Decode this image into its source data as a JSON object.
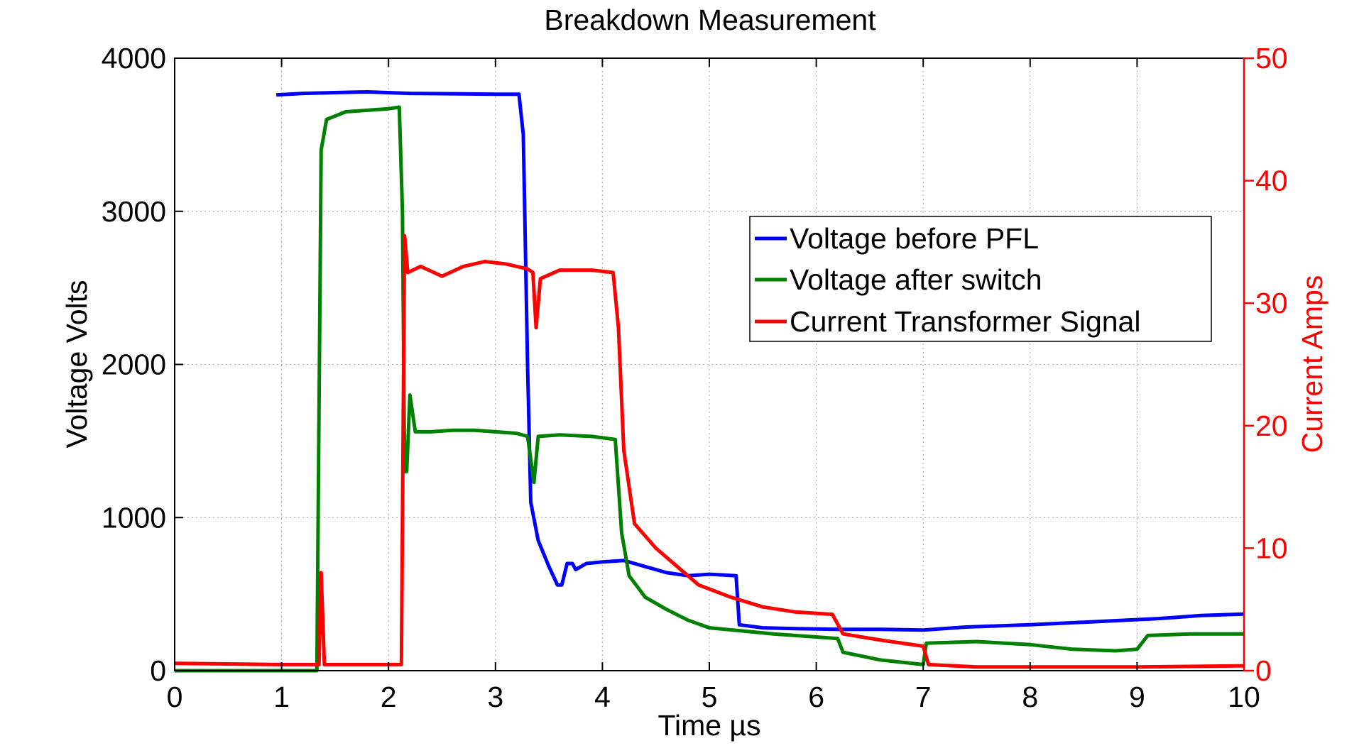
{
  "chart_data": {
    "type": "line",
    "title": "Breakdown Measurement",
    "xlabel": "Time µs",
    "ylabel_left": "Voltage Volts",
    "ylabel_right": "Current Amps",
    "xlim": [
      0,
      10
    ],
    "ylim_left": [
      0,
      4000
    ],
    "ylim_right": [
      0,
      50
    ],
    "x_ticks": [
      0,
      1,
      2,
      3,
      4,
      5,
      6,
      7,
      8,
      9,
      10
    ],
    "y_left_ticks": [
      0,
      1000,
      2000,
      3000,
      4000
    ],
    "y_right_ticks": [
      0,
      10,
      20,
      30,
      40,
      50
    ],
    "grid": true,
    "legend_position": "right-center",
    "colors": {
      "left_axis": "#000000",
      "right_axis": "#ff0000"
    },
    "series": [
      {
        "name": "Voltage before PFL",
        "color": "#0000ff",
        "axis": "left",
        "points": [
          [
            0.95,
            3760
          ],
          [
            1.2,
            3770
          ],
          [
            1.5,
            3775
          ],
          [
            1.8,
            3780
          ],
          [
            2.2,
            3770
          ],
          [
            2.6,
            3768
          ],
          [
            3.0,
            3765
          ],
          [
            3.22,
            3765
          ],
          [
            3.26,
            3500
          ],
          [
            3.3,
            2000
          ],
          [
            3.33,
            1100
          ],
          [
            3.4,
            850
          ],
          [
            3.5,
            680
          ],
          [
            3.58,
            560
          ],
          [
            3.62,
            560
          ],
          [
            3.67,
            700
          ],
          [
            3.72,
            700
          ],
          [
            3.75,
            660
          ],
          [
            3.85,
            700
          ],
          [
            4.0,
            710
          ],
          [
            4.2,
            720
          ],
          [
            4.4,
            680
          ],
          [
            4.6,
            640
          ],
          [
            4.8,
            620
          ],
          [
            5.0,
            630
          ],
          [
            5.25,
            620
          ],
          [
            5.28,
            300
          ],
          [
            5.5,
            280
          ],
          [
            5.8,
            275
          ],
          [
            6.2,
            270
          ],
          [
            6.6,
            270
          ],
          [
            7.0,
            265
          ],
          [
            7.4,
            285
          ],
          [
            8.0,
            300
          ],
          [
            8.6,
            320
          ],
          [
            9.2,
            340
          ],
          [
            9.6,
            360
          ],
          [
            10.0,
            370
          ]
        ]
      },
      {
        "name": "Voltage after switch",
        "color": "#008000",
        "axis": "left",
        "points": [
          [
            0.0,
            0
          ],
          [
            1.33,
            0
          ],
          [
            1.37,
            3400
          ],
          [
            1.42,
            3600
          ],
          [
            1.6,
            3650
          ],
          [
            1.8,
            3660
          ],
          [
            2.0,
            3670
          ],
          [
            2.1,
            3680
          ],
          [
            2.13,
            3000
          ],
          [
            2.15,
            1300
          ],
          [
            2.17,
            1300
          ],
          [
            2.2,
            1800
          ],
          [
            2.25,
            1560
          ],
          [
            2.4,
            1560
          ],
          [
            2.6,
            1570
          ],
          [
            2.8,
            1570
          ],
          [
            3.0,
            1560
          ],
          [
            3.2,
            1550
          ],
          [
            3.3,
            1530
          ],
          [
            3.36,
            1230
          ],
          [
            3.4,
            1530
          ],
          [
            3.6,
            1540
          ],
          [
            3.9,
            1530
          ],
          [
            4.12,
            1510
          ],
          [
            4.18,
            900
          ],
          [
            4.25,
            620
          ],
          [
            4.4,
            480
          ],
          [
            4.6,
            400
          ],
          [
            4.8,
            330
          ],
          [
            5.0,
            280
          ],
          [
            5.3,
            260
          ],
          [
            5.6,
            240
          ],
          [
            6.0,
            220
          ],
          [
            6.2,
            210
          ],
          [
            6.25,
            120
          ],
          [
            6.6,
            70
          ],
          [
            7.0,
            40
          ],
          [
            7.03,
            180
          ],
          [
            7.5,
            190
          ],
          [
            8.0,
            170
          ],
          [
            8.4,
            140
          ],
          [
            8.8,
            130
          ],
          [
            9.0,
            140
          ],
          [
            9.1,
            230
          ],
          [
            9.5,
            240
          ],
          [
            10.0,
            240
          ]
        ]
      },
      {
        "name": "Current Transformer Signal",
        "color": "#ff0000",
        "axis": "right",
        "points": [
          [
            0.0,
            0.6
          ],
          [
            1.0,
            0.5
          ],
          [
            1.35,
            0.5
          ],
          [
            1.37,
            8.0
          ],
          [
            1.4,
            0.5
          ],
          [
            2.0,
            0.5
          ],
          [
            2.12,
            0.5
          ],
          [
            2.15,
            35.5
          ],
          [
            2.18,
            32.5
          ],
          [
            2.3,
            33.0
          ],
          [
            2.5,
            32.2
          ],
          [
            2.7,
            33.0
          ],
          [
            2.9,
            33.4
          ],
          [
            3.1,
            33.2
          ],
          [
            3.3,
            32.8
          ],
          [
            3.35,
            32.5
          ],
          [
            3.38,
            28.0
          ],
          [
            3.42,
            32.0
          ],
          [
            3.6,
            32.7
          ],
          [
            3.9,
            32.7
          ],
          [
            4.1,
            32.5
          ],
          [
            4.15,
            28.0
          ],
          [
            4.2,
            18.0
          ],
          [
            4.3,
            12.0
          ],
          [
            4.5,
            10.0
          ],
          [
            4.7,
            8.5
          ],
          [
            4.9,
            7.0
          ],
          [
            5.2,
            6.0
          ],
          [
            5.5,
            5.2
          ],
          [
            5.8,
            4.8
          ],
          [
            6.15,
            4.6
          ],
          [
            6.25,
            3.0
          ],
          [
            6.6,
            2.5
          ],
          [
            7.0,
            2.0
          ],
          [
            7.05,
            0.5
          ],
          [
            7.5,
            0.3
          ],
          [
            8.0,
            0.3
          ],
          [
            9.0,
            0.3
          ],
          [
            10.0,
            0.4
          ]
        ]
      }
    ]
  }
}
